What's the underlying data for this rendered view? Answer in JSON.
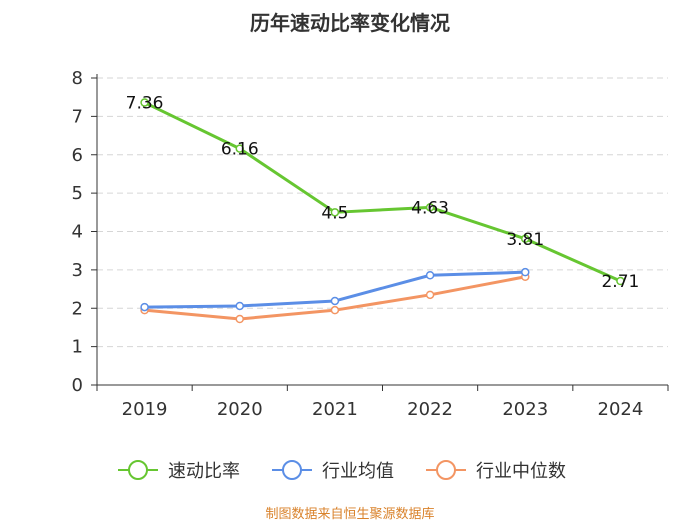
{
  "chart_data": {
    "type": "line",
    "title": "历年速动比率变化情况",
    "categories": [
      "2019",
      "2020",
      "2021",
      "2022",
      "2023",
      "2024"
    ],
    "ylim": [
      0,
      8
    ],
    "yticks": [
      0,
      1,
      2,
      3,
      4,
      5,
      6,
      7,
      8
    ],
    "grid": true,
    "legend_position": "bottom-center",
    "series": [
      {
        "name": "速动比率",
        "color": "#66c631",
        "values": [
          7.36,
          6.16,
          4.5,
          4.63,
          3.81,
          2.71
        ],
        "labels": [
          "7.36",
          "6.16",
          "4.5",
          "4.63",
          "3.81",
          "2.71"
        ],
        "show_labels": true
      },
      {
        "name": "行业均值",
        "color": "#5b8ee6",
        "values": [
          2.03,
          2.06,
          2.19,
          2.86,
          2.94,
          null
        ],
        "show_labels": false
      },
      {
        "name": "行业中位数",
        "color": "#f39563",
        "values": [
          1.95,
          1.72,
          1.95,
          2.35,
          2.82,
          null
        ],
        "show_labels": false
      }
    ],
    "source": "制图数据来自恒生聚源数据库"
  }
}
